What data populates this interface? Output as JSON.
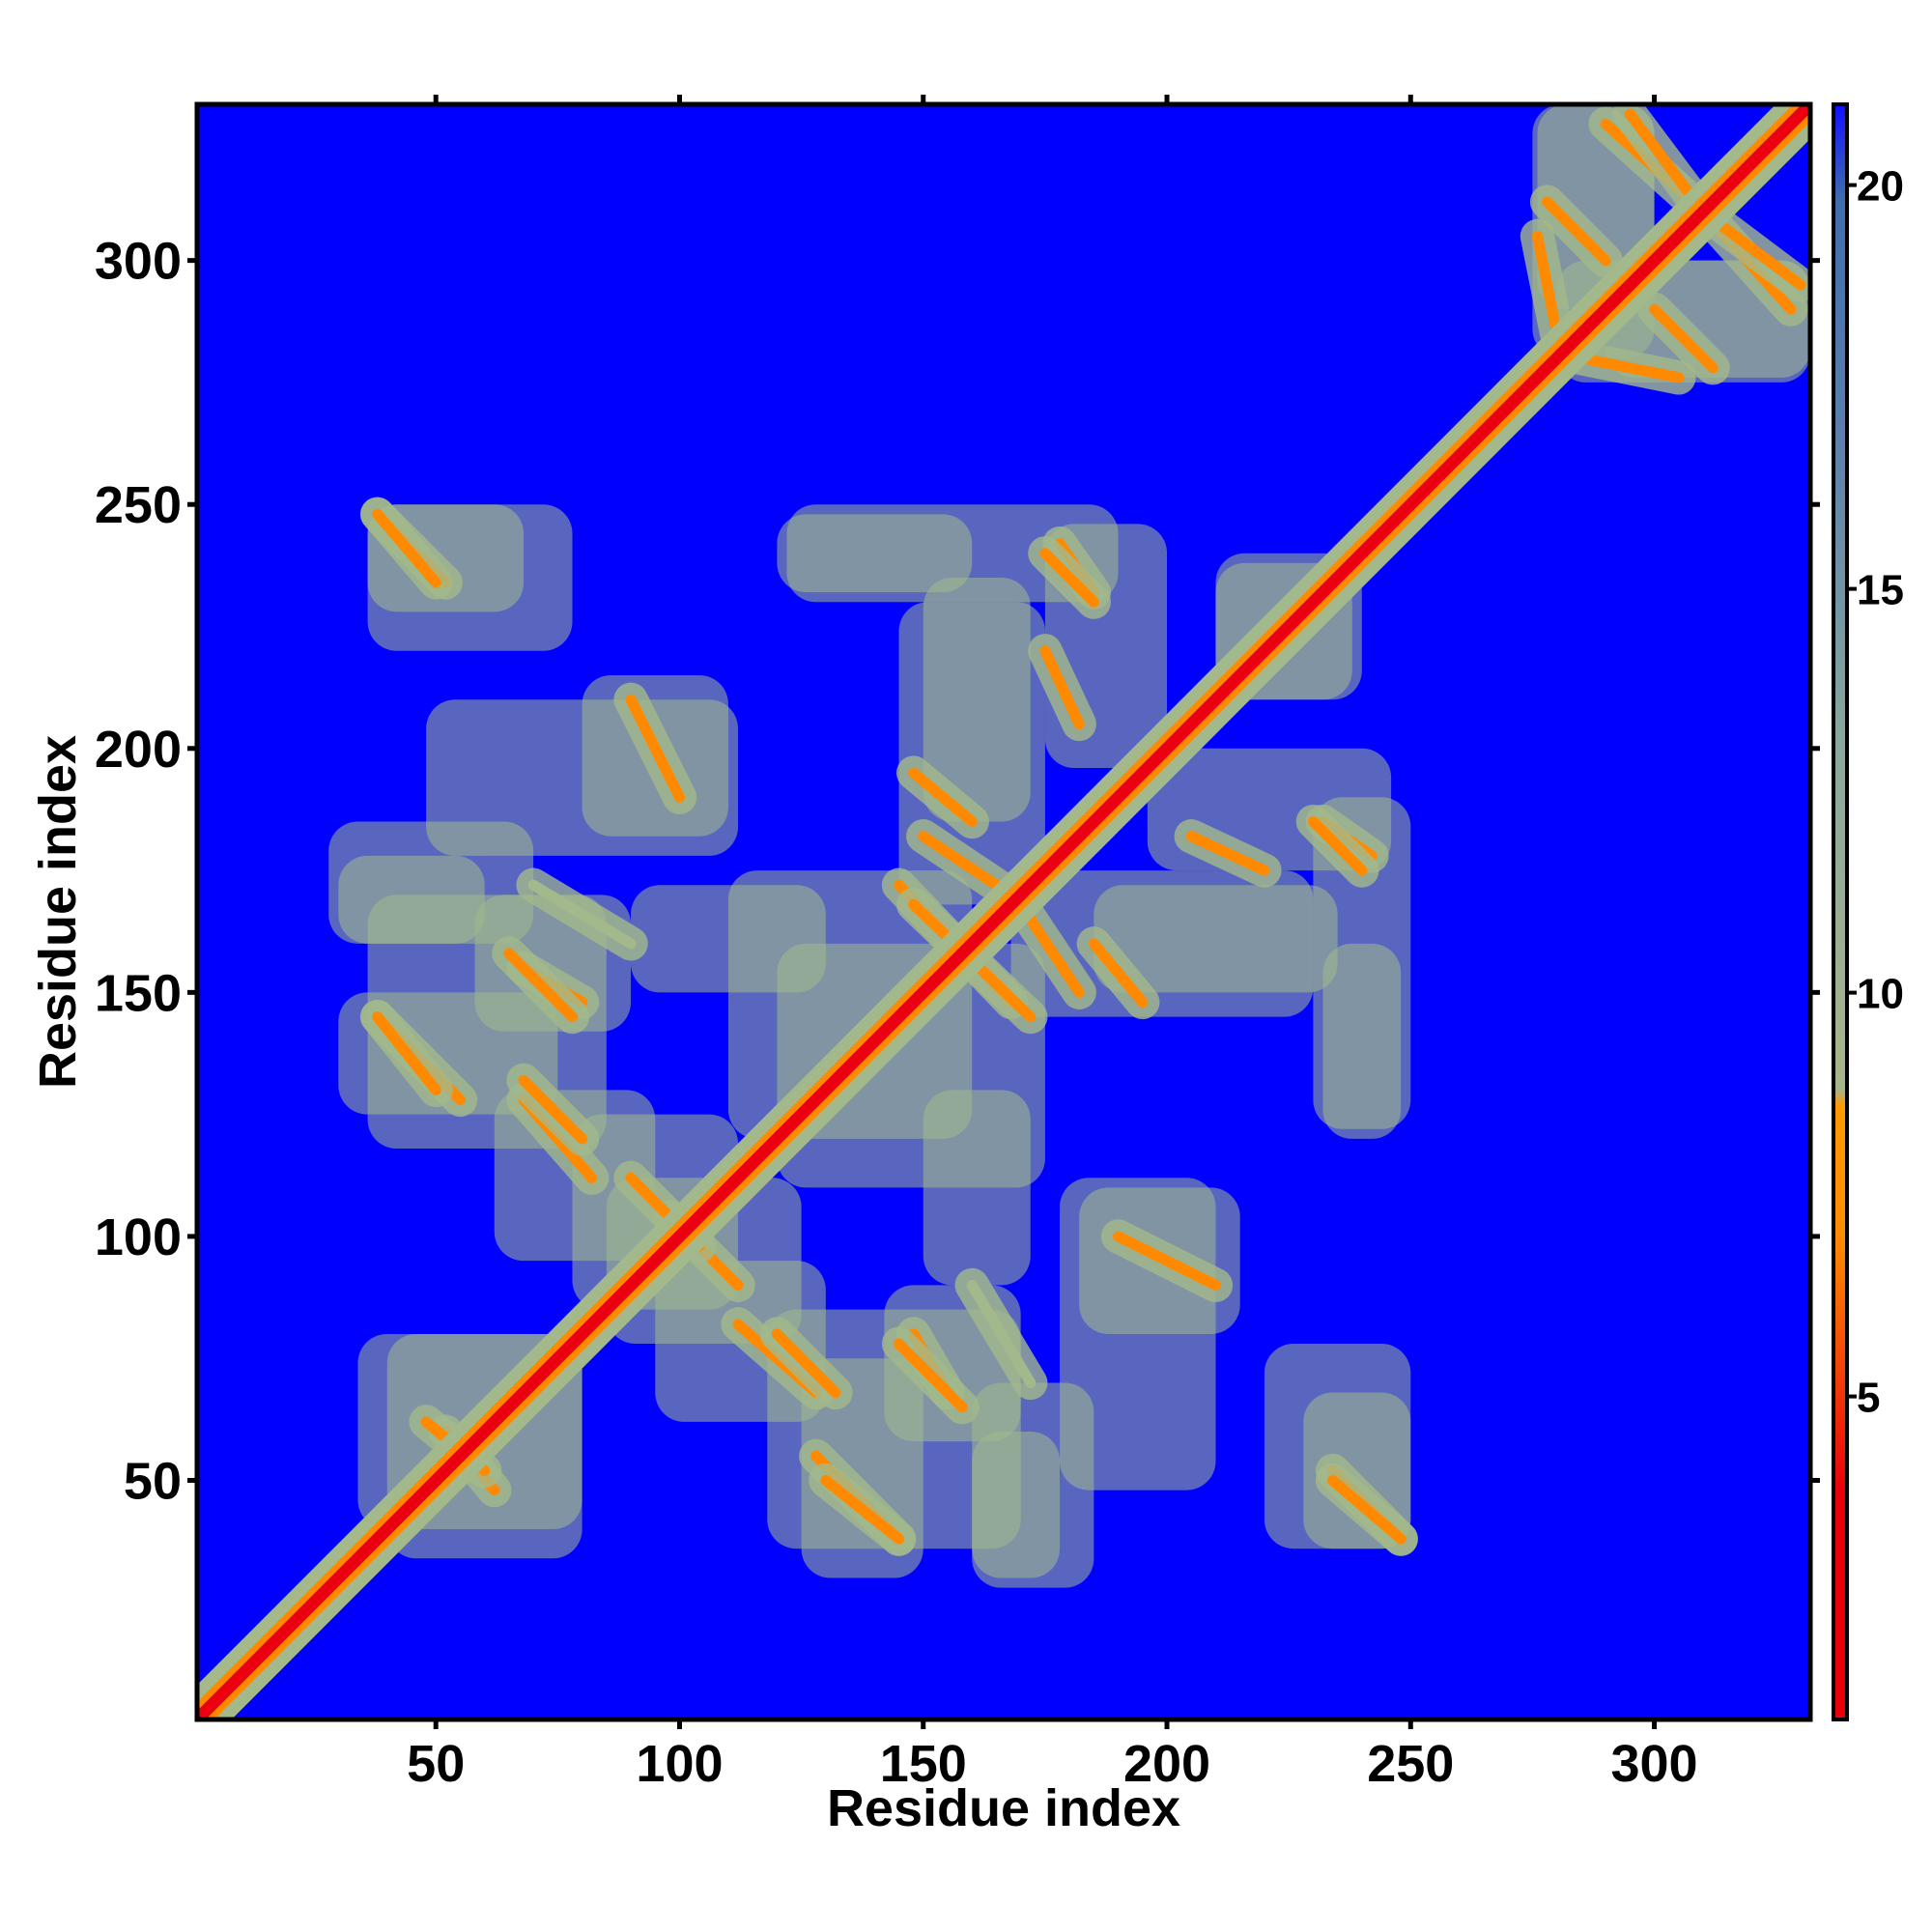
{
  "chart_data": {
    "type": "heatmap",
    "title": "",
    "xlabel": "Residue index",
    "ylabel": "Residue index",
    "xlim": [
      1,
      332
    ],
    "ylim": [
      1,
      332
    ],
    "x_ticks": [
      50,
      100,
      150,
      200,
      250,
      300
    ],
    "y_ticks": [
      50,
      100,
      150,
      200,
      250,
      300
    ],
    "x_tick_labels": [
      "50",
      "100",
      "150",
      "200",
      "250",
      "300"
    ],
    "y_tick_labels": [
      "50",
      "100",
      "150",
      "200",
      "250",
      "300"
    ],
    "value_range": [
      1,
      21
    ],
    "colorbar": {
      "ticks": [
        5,
        10,
        15,
        20
      ],
      "labels": [
        "5",
        "10",
        "15",
        "20"
      ],
      "colors": [
        "#e8000b",
        "#ff8c00",
        "#9fb88a",
        "#3f6fae",
        "#0000ff"
      ]
    },
    "background_value": 21,
    "background_color": "#0000ff",
    "diagonal": {
      "from": 1,
      "to": 332,
      "value": 3
    },
    "contact_segments": [
      {
        "x": [
          38,
          52
        ],
        "y": [
          248,
          234
        ],
        "value": 5
      },
      {
        "x": [
          38,
          55
        ],
        "y": [
          145,
          128
        ],
        "value": 6
      },
      {
        "x": [
          68,
          80
        ],
        "y": [
          155,
          148
        ],
        "value": 6
      },
      {
        "x": [
          68,
          82
        ],
        "y": [
          128,
          112
        ],
        "value": 6
      },
      {
        "x": [
          120,
          132
        ],
        "y": [
          80,
          68
        ],
        "value": 6
      },
      {
        "x": [
          130,
          145
        ],
        "y": [
          50,
          38
        ],
        "value": 5
      },
      {
        "x": [
          145,
          158
        ],
        "y": [
          78,
          65
        ],
        "value": 6
      },
      {
        "x": [
          145,
          168
        ],
        "y": [
          172,
          148
        ],
        "value": 5
      },
      {
        "x": [
          178,
          185
        ],
        "y": [
          242,
          232
        ],
        "value": 6
      },
      {
        "x": [
          150,
          168
        ],
        "y": [
          182,
          170
        ],
        "value": 7
      },
      {
        "x": [
          205,
          220
        ],
        "y": [
          182,
          175
        ],
        "value": 7
      },
      {
        "x": [
          230,
          240
        ],
        "y": [
          185,
          175
        ],
        "value": 6
      },
      {
        "x": [
          234,
          248
        ],
        "y": [
          50,
          38
        ],
        "value": 5
      },
      {
        "x": [
          290,
          310
        ],
        "y": [
          328,
          310
        ],
        "value": 6
      },
      {
        "x": [
          310,
          330
        ],
        "y": [
          310,
          295
        ],
        "value": 6
      },
      {
        "x": [
          285,
          305
        ],
        "y": [
          280,
          276
        ],
        "value": 7
      },
      {
        "x": [
          278,
          290
        ],
        "y": [
          312,
          300
        ],
        "value": 7
      },
      {
        "x": [
          90,
          100
        ],
        "y": [
          210,
          190
        ],
        "value": 8
      },
      {
        "x": [
          160,
          172
        ],
        "y": [
          90,
          70
        ],
        "value": 9
      },
      {
        "x": [
          185,
          195
        ],
        "y": [
          160,
          148
        ],
        "value": 8
      },
      {
        "x": [
          98,
          112
        ],
        "y": [
          104,
          90
        ],
        "value": 7
      },
      {
        "x": [
          52,
          62
        ],
        "y": [
          60,
          48
        ],
        "value": 7
      }
    ],
    "regions": [
      {
        "x": [
          36,
          68
        ],
        "y": [
          228,
          250
        ],
        "value": 11
      },
      {
        "x": [
          80,
          110
        ],
        "y": [
          182,
          215
        ],
        "value": 11
      },
      {
        "x": [
          30,
          60
        ],
        "y": [
          160,
          178
        ],
        "value": 11
      },
      {
        "x": [
          30,
          75
        ],
        "y": [
          125,
          150
        ],
        "value": 12
      },
      {
        "x": [
          58,
          90
        ],
        "y": [
          142,
          170
        ],
        "value": 11
      },
      {
        "x": [
          62,
          95
        ],
        "y": [
          95,
          130
        ],
        "value": 11
      },
      {
        "x": [
          85,
          125
        ],
        "y": [
          78,
          112
        ],
        "value": 12
      },
      {
        "x": [
          90,
          130
        ],
        "y": [
          150,
          172
        ],
        "value": 12
      },
      {
        "x": [
          34,
          80
        ],
        "y": [
          40,
          80
        ],
        "value": 12
      },
      {
        "x": [
          118,
          170
        ],
        "y": [
          36,
          85
        ],
        "value": 12
      },
      {
        "x": [
          120,
          160
        ],
        "y": [
          232,
          248
        ],
        "value": 12
      },
      {
        "x": [
          145,
          175
        ],
        "y": [
          168,
          230
        ],
        "value": 12
      },
      {
        "x": [
          175,
          200
        ],
        "y": [
          196,
          246
        ],
        "value": 12
      },
      {
        "x": [
          185,
          235
        ],
        "y": [
          150,
          172
        ],
        "value": 12
      },
      {
        "x": [
          210,
          240
        ],
        "y": [
          210,
          238
        ],
        "value": 12
      },
      {
        "x": [
          230,
          250
        ],
        "y": [
          122,
          190
        ],
        "value": 12
      },
      {
        "x": [
          178,
          210
        ],
        "y": [
          48,
          112
        ],
        "value": 12
      },
      {
        "x": [
          220,
          250
        ],
        "y": [
          36,
          78
        ],
        "value": 12
      },
      {
        "x": [
          120,
          175
        ],
        "y": [
          110,
          160
        ],
        "value": 12
      },
      {
        "x": [
          160,
          185
        ],
        "y": [
          28,
          70
        ],
        "value": 12
      },
      {
        "x": [
          275,
          300
        ],
        "y": [
          280,
          332
        ],
        "value": 12
      },
      {
        "x": [
          290,
          332
        ],
        "y": [
          276,
          300
        ],
        "value": 12
      }
    ]
  }
}
